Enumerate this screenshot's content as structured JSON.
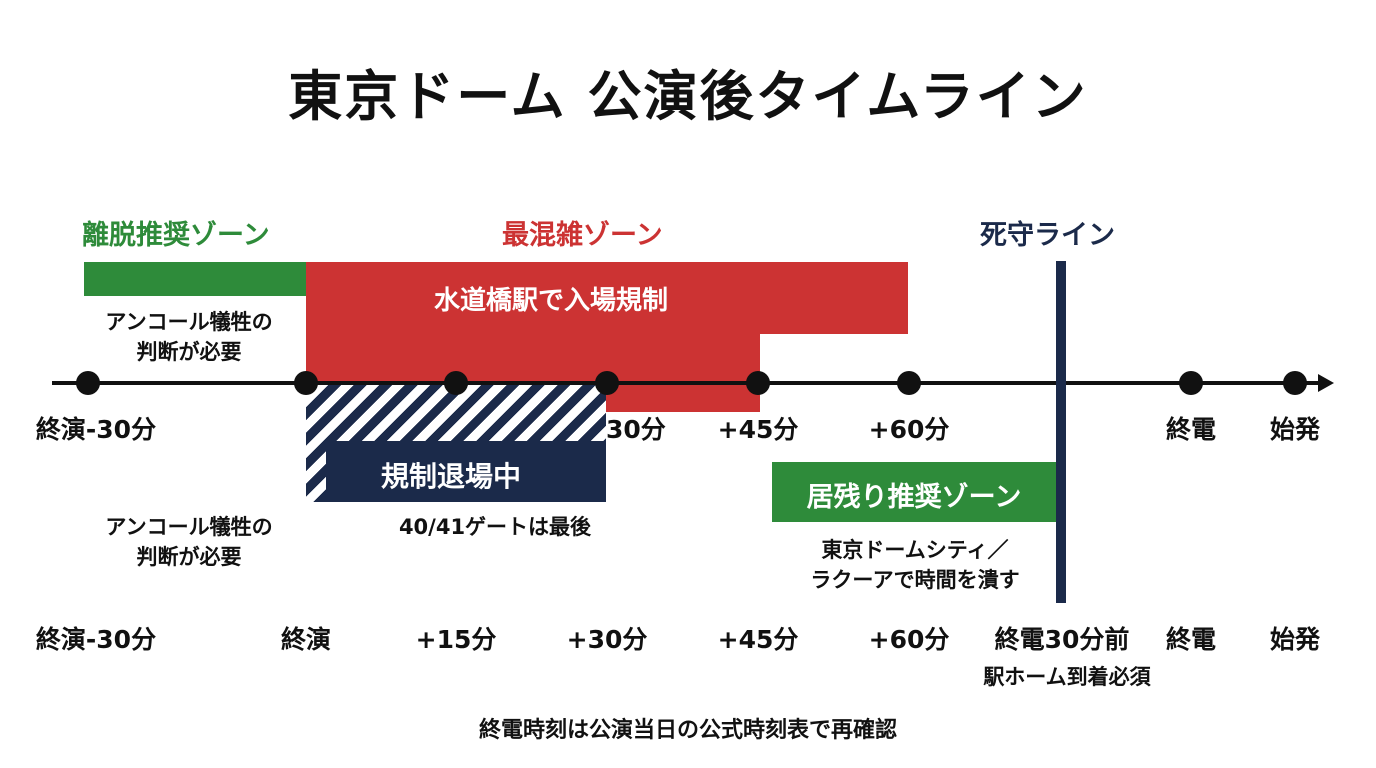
{
  "title": "東京ドーム 公演後タイムライン",
  "colors": {
    "green": "#2e8b3a",
    "red": "#cc3333",
    "navy": "#1b2a4a",
    "black": "#111111"
  },
  "zones": {
    "leave": {
      "label": "離脱推奨ゾーン",
      "note1": "アンコール犠牲の",
      "note2": "判断が必要"
    },
    "crowd": {
      "label": "最混雑ゾーン",
      "bar_text": "水道橋駅で入場規制"
    },
    "deadline": {
      "label": "死守ライン",
      "note1": "駅ホーム到着必須"
    },
    "regulated": {
      "bar_text": "規制退場中",
      "note": "40/41ゲートは最後"
    },
    "stay": {
      "label": "居残り推奨ゾーン",
      "note1": "東京ドームシティ／",
      "note2": "ラクーアで時間を潰す"
    }
  },
  "upper_ticks": [
    "終演-30分",
    "30分",
    "+45分",
    "+60分",
    "終電",
    "始発"
  ],
  "lower_note": {
    "line1": "アンコール犠牲の",
    "line2": "判断が必要"
  },
  "lower_ticks": [
    "終演-30分",
    "終演",
    "+15分",
    "+30分",
    "+45分",
    "+60分",
    "終電30分前",
    "終電",
    "始発"
  ],
  "footer": "終電時刻は公演当日の公式時刻表で再確認"
}
